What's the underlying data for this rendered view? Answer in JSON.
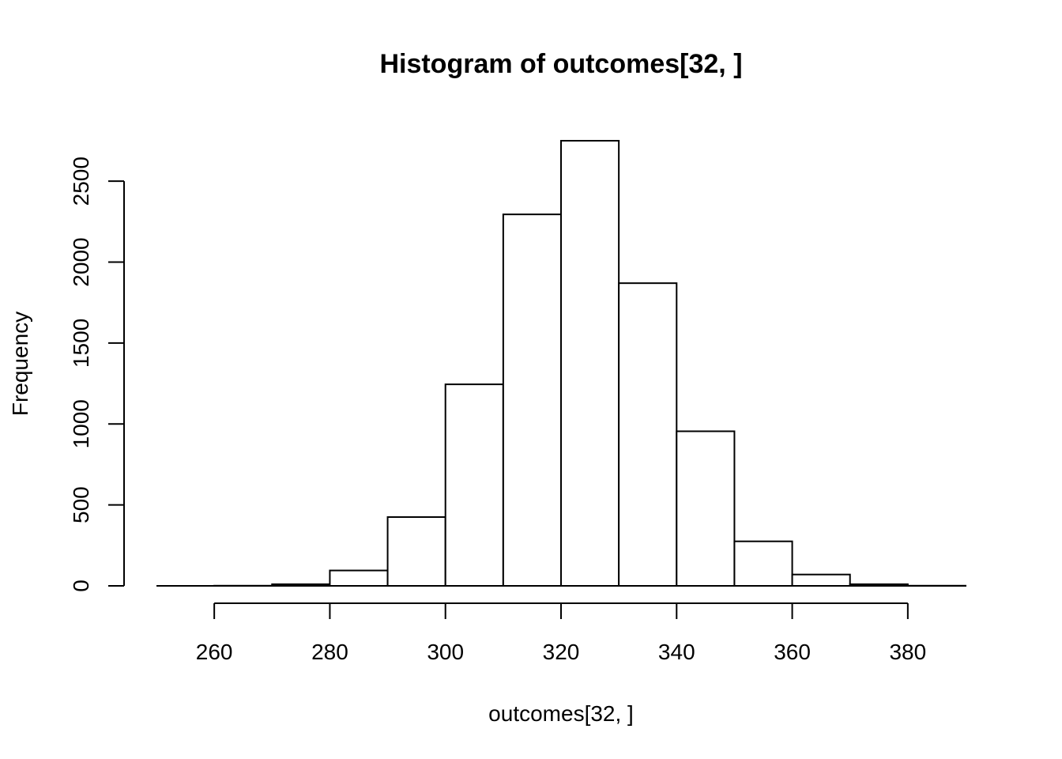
{
  "chart_data": {
    "type": "bar",
    "title": "Histogram of outcomes[32, ]",
    "xlabel": "outcomes[32, ]",
    "ylabel": "Frequency",
    "bins": [
      {
        "start": 250,
        "end": 260,
        "value": 0
      },
      {
        "start": 260,
        "end": 270,
        "value": 1
      },
      {
        "start": 270,
        "end": 280,
        "value": 10
      },
      {
        "start": 280,
        "end": 290,
        "value": 95
      },
      {
        "start": 290,
        "end": 300,
        "value": 425
      },
      {
        "start": 300,
        "end": 310,
        "value": 1245
      },
      {
        "start": 310,
        "end": 320,
        "value": 2295
      },
      {
        "start": 320,
        "end": 330,
        "value": 2750
      },
      {
        "start": 330,
        "end": 340,
        "value": 1870
      },
      {
        "start": 340,
        "end": 350,
        "value": 955
      },
      {
        "start": 350,
        "end": 360,
        "value": 275
      },
      {
        "start": 360,
        "end": 370,
        "value": 70
      },
      {
        "start": 370,
        "end": 380,
        "value": 10
      },
      {
        "start": 380,
        "end": 390,
        "value": 1
      }
    ],
    "x_ticks": [
      "260",
      "280",
      "300",
      "320",
      "340",
      "360",
      "380"
    ],
    "y_ticks": [
      "0",
      "500",
      "1000",
      "1500",
      "2000",
      "2500"
    ],
    "xlim": [
      250,
      390
    ],
    "ylim": [
      0,
      2750
    ],
    "grid": false
  }
}
